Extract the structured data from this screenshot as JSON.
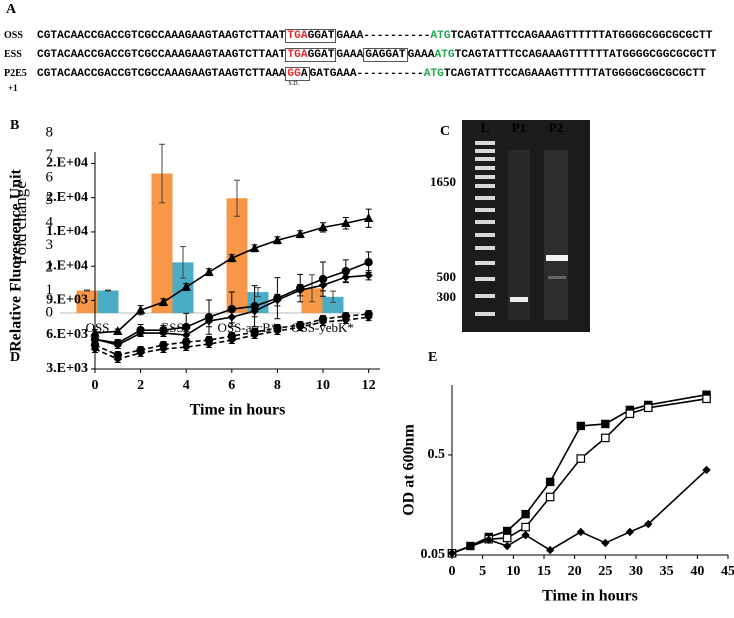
{
  "panel_a": {
    "label": "A",
    "rows": [
      {
        "name": "OSS",
        "parts": [
          {
            "text": "CGTACAACCGACCGTCGCCAAAGAAGTAAGTCTTAAT"
          },
          {
            "box": [
              {
                "text": "TGA",
                "color": "#e8262b"
              },
              {
                "text": "GGAT"
              }
            ]
          },
          {
            "text": "GAAA----------"
          },
          {
            "text": "ATG",
            "color": "#1fa84a"
          },
          {
            "text": "TCAGTATTTCCAGAAAGTTTTTTATGGGGCGGCGCGCTT"
          }
        ]
      },
      {
        "name": "ESS",
        "parts": [
          {
            "text": "CGTACAACCGACCGTCGCCAAAGAAGTAAGTCTTAAT"
          },
          {
            "box": [
              {
                "text": "TGA",
                "color": "#e8262b"
              },
              {
                "text": "GGAT"
              }
            ]
          },
          {
            "text": "GAAA"
          },
          {
            "box": [
              {
                "text": "GAGGAT"
              }
            ]
          },
          {
            "text": "GAAA"
          },
          {
            "text": "ATG",
            "color": "#1fa84a"
          },
          {
            "text": "TCAGTATTTCCAGAAAGTTTTTTATGGGGCGGCGCGCTT"
          }
        ]
      },
      {
        "name": "P2E5",
        "sub_label": "+1",
        "parts": [
          {
            "text": "CGTACAACCGACCGTCGCCAAAGAAGTAAGTCTTAAA"
          },
          {
            "box": [
              {
                "text": "GG",
                "color": "#e8262b"
              },
              {
                "text": "A"
              }
            ],
            "note": "S.D."
          },
          {
            "text": "GATGAAA----------"
          },
          {
            "text": "ATG",
            "color": "#1fa84a"
          },
          {
            "text": "TCAGTATTTCCAGAAAGTTTTTTATGGGGCGGCGCGCTT"
          }
        ]
      }
    ]
  },
  "panel_c": {
    "label": "C",
    "lanes": [
      "L",
      "P1",
      "P2"
    ],
    "size_labels": [
      "1650",
      "500",
      "300"
    ]
  },
  "chart_data": [
    {
      "type": "bar",
      "panel_label": "B",
      "ylabel": "Fold change",
      "categories": [
        "OSS",
        "ESS",
        "OSS-ascB*",
        "OSS-yebK*"
      ],
      "series": [
        {
          "color": "#f79646",
          "values": [
            1,
            6.2,
            5.1,
            1.1
          ],
          "errors": [
            0.02,
            1.3,
            0.8,
            0.6
          ]
        },
        {
          "color": "#4bacc6",
          "values": [
            1,
            2.25,
            0.93,
            0.72
          ],
          "errors": [
            0.02,
            0.7,
            0.2,
            0.25
          ]
        }
      ],
      "ylim": [
        0,
        8
      ],
      "yticks": [
        0,
        1,
        2,
        3,
        4,
        5,
        6,
        7,
        8
      ]
    },
    {
      "type": "line",
      "panel_label": "D",
      "ylabel": "Relative Fluorescence Unit",
      "xlabel": "Time in hours",
      "x": [
        0,
        1,
        2,
        3,
        4,
        5,
        6,
        7,
        8,
        9,
        10,
        11,
        12
      ],
      "series": [
        {
          "marker": "triangle",
          "dash": false,
          "color": "#000000",
          "values": [
            6150,
            6300,
            8150,
            8850,
            10170,
            11480,
            12700,
            13570,
            14270,
            14800,
            15400,
            15760,
            16200
          ],
          "errors": [
            300,
            200,
            400,
            300,
            300,
            300,
            300,
            300,
            300,
            300,
            400,
            500,
            800
          ]
        },
        {
          "marker": "circle",
          "dash": false,
          "color": "#000000",
          "values": [
            5600,
            5270,
            6400,
            6400,
            6670,
            7540,
            8240,
            8500,
            9200,
            10080,
            10870,
            11560,
            12350
          ],
          "errors": [
            400,
            300,
            500,
            400,
            1200,
            1500,
            1500,
            1800,
            1800,
            1200,
            1500,
            1000,
            900
          ]
        },
        {
          "marker": "diamond",
          "dash": false,
          "color": "#000000",
          "values": [
            5620,
            5100,
            6150,
            6150,
            5970,
            7200,
            7540,
            8070,
            9030,
            9900,
            10340,
            11040,
            11200
          ],
          "errors": [
            300,
            300,
            300,
            300,
            300,
            500,
            500,
            500,
            500,
            500,
            500,
            400,
            400
          ]
        },
        {
          "marker": "circle",
          "dash": true,
          "color": "#000000",
          "values": [
            5100,
            4220,
            4660,
            5100,
            5360,
            5530,
            5880,
            6230,
            6580,
            6850,
            7370,
            7630,
            7810
          ],
          "errors": [
            300,
            300,
            300,
            300,
            300,
            300,
            300,
            300,
            300,
            300,
            300,
            300,
            300
          ]
        },
        {
          "marker": "diamond",
          "dash": true,
          "color": "#000000",
          "values": [
            4750,
            3870,
            4400,
            4750,
            4920,
            5180,
            5530,
            5970,
            6320,
            6670,
            7110,
            7280,
            7540
          ],
          "errors": [
            300,
            300,
            300,
            300,
            300,
            300,
            300,
            300,
            300,
            300,
            300,
            300,
            300
          ]
        }
      ],
      "xlim": [
        0,
        12.5
      ],
      "xticks": [
        0,
        2,
        4,
        6,
        8,
        10,
        12
      ],
      "ylim": [
        3000,
        22000
      ],
      "yticks": [
        {
          "value": 3000,
          "label": "3.E+03"
        },
        {
          "value": 6000,
          "label": "6.E+03"
        },
        {
          "value": 9000,
          "label": "9.E+03"
        },
        {
          "value": 12000,
          "label": "1.E+04"
        },
        {
          "value": 15000,
          "label": "1.E+04"
        },
        {
          "value": 18000,
          "label": "2.E+04"
        },
        {
          "value": 21000,
          "label": "2.E+04"
        }
      ]
    },
    {
      "type": "line",
      "panel_label": "E",
      "ylabel": "OD at 600nm",
      "xlabel": "Time in hours",
      "log_scale": true,
      "series": [
        {
          "marker": "square",
          "dash": false,
          "color": "#000000",
          "x": [
            0,
            3,
            6,
            9,
            12,
            16,
            21,
            25,
            29,
            32,
            41.5
          ],
          "values": [
            0.052,
            0.0615,
            0.0757,
            0.0869,
            0.128,
            0.269,
            0.975,
            1.02,
            1.41,
            1.58,
            2.0
          ]
        },
        {
          "marker": "square-open",
          "dash": false,
          "color": "#000000",
          "x": [
            0,
            6,
            9,
            12,
            16,
            21,
            25,
            29,
            32,
            41.5
          ],
          "values": [
            0.052,
            0.072,
            0.074,
            0.095,
            0.19,
            0.46,
            0.74,
            1.29,
            1.48,
            1.82
          ]
        },
        {
          "marker": "diamond",
          "dash": false,
          "color": "#000000",
          "x": [
            0,
            6,
            9,
            12,
            16,
            21,
            25,
            29,
            32,
            41.5
          ],
          "values": [
            0.052,
            0.071,
            0.0615,
            0.079,
            0.056,
            0.085,
            0.066,
            0.085,
            0.102,
            0.354
          ]
        }
      ],
      "xlim": [
        0,
        45
      ],
      "xticks": [
        0,
        5,
        10,
        15,
        20,
        25,
        30,
        35,
        40,
        45
      ],
      "ylim": [
        0.05,
        2.5
      ],
      "yticks": [
        0.05,
        0.5
      ]
    }
  ]
}
